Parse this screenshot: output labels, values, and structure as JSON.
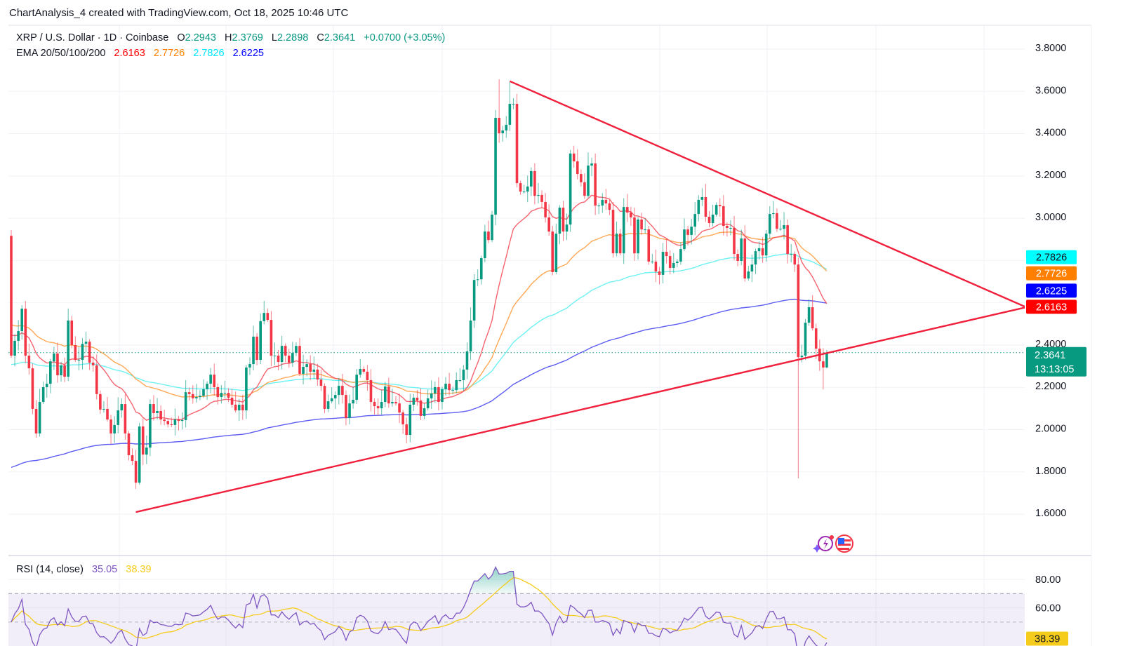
{
  "header": {
    "title": "ChartAnalysis_4 created with TradingView.com, Oct 18, 2025 10:46 UTC"
  },
  "legend": {
    "symbol": "XRP / U.S. Dollar · 1D · Coinbase",
    "o_label": "O",
    "o": "2.2943",
    "h_label": "H",
    "h": "2.3769",
    "l_label": "L",
    "l": "2.2898",
    "c_label": "C",
    "c": "2.3641",
    "change": "+0.0700 (+3.05%)",
    "ema_label": "EMA 20/50/100/200",
    "ema20": "2.6163",
    "ema50": "2.7726",
    "ema100": "2.7826",
    "ema200": "2.6225"
  },
  "price_axis": {
    "ticks": [
      "3.8000",
      "3.6000",
      "3.4000",
      "3.2000",
      "3.0000",
      "2.4000",
      "2.2000",
      "2.0000",
      "1.8000",
      "1.6000"
    ],
    "tick_values": [
      3.8,
      3.6,
      3.4,
      3.2,
      3.0,
      2.4,
      2.2,
      2.0,
      1.8,
      1.6
    ],
    "grid_values": [
      3.8,
      3.6,
      3.4,
      3.2,
      3.0,
      2.8,
      2.6,
      2.4,
      2.2,
      2.0,
      1.8,
      1.6
    ],
    "markers": [
      {
        "name": "ema100-price-label",
        "text": "2.7826",
        "value": 2.7826,
        "bg": "#00ffff",
        "fg": "#131722"
      },
      {
        "name": "ema50-price-label",
        "text": "2.7726",
        "value": 2.7726,
        "bg": "#ff7f00",
        "fg": "#ffffff"
      },
      {
        "name": "ema200-price-label",
        "text": "2.6225",
        "value": 2.6225,
        "bg": "#0000ff",
        "fg": "#ffffff"
      },
      {
        "name": "ema20-price-label",
        "text": "2.6163",
        "value": 2.6163,
        "bg": "#ff0000",
        "fg": "#ffffff"
      }
    ],
    "current_price": "2.3641",
    "countdown": "13:13:05"
  },
  "rsi": {
    "label": "RSI (14, close)",
    "value": "35.05",
    "ma_value": "38.39",
    "ticks": [
      "80.00",
      "60.00"
    ],
    "tick_values": [
      80,
      60
    ],
    "upper_band": 70,
    "middle_band": 50,
    "period": 14,
    "ma_period": 14
  },
  "colors": {
    "up": "#089981",
    "down": "#f23645",
    "ema20": "#f5525f",
    "ema50": "#ff9f43",
    "ema100": "#5ef0f2",
    "ema200": "#4a4af2",
    "trendline": "#f0203c",
    "rsi": "#7e57c2",
    "rsi_ma": "#f5cc1b"
  },
  "chart_data": {
    "type": "candlestick",
    "title": "XRP / U.S. Dollar · 1D · Coinbase",
    "ylim": [
      1.45,
      3.9
    ],
    "first_open": 2.917,
    "close": [
      2.35,
      2.42,
      2.466,
      2.572,
      2.35,
      2.29,
      2.098,
      1.982,
      2.131,
      2.201,
      2.217,
      2.323,
      2.36,
      2.257,
      2.304,
      2.25,
      2.516,
      2.4,
      2.33,
      2.33,
      2.406,
      2.416,
      2.317,
      2.304,
      2.168,
      2.095,
      2.098,
      2.048,
      1.982,
      2.022,
      2.091,
      2.121,
      1.982,
      1.879,
      1.852,
      1.749,
      2.015,
      1.882,
      1.915,
      2.121,
      2.078,
      2.088,
      2.048,
      2.041,
      2.025,
      2.022,
      2.048,
      2.041,
      2.045,
      2.177,
      2.168,
      2.148,
      2.154,
      2.16,
      2.191,
      2.217,
      2.26,
      2.201,
      2.154,
      2.174,
      2.174,
      2.151,
      2.118,
      2.091,
      2.118,
      2.091,
      2.294,
      2.31,
      2.44,
      2.33,
      2.513,
      2.552,
      2.519,
      2.35,
      2.35,
      2.32,
      2.396,
      2.35,
      2.317,
      2.363,
      2.396,
      2.264,
      2.297,
      2.31,
      2.274,
      2.284,
      2.237,
      2.207,
      2.098,
      2.134,
      2.148,
      2.164,
      2.207,
      2.164,
      2.055,
      2.124,
      2.141,
      2.26,
      2.287,
      2.274,
      2.234,
      2.131,
      2.111,
      2.101,
      2.131,
      2.204,
      2.124,
      2.131,
      2.124,
      2.081,
      2.025,
      1.975,
      2.118,
      2.151,
      2.138,
      2.065,
      2.101,
      2.148,
      2.171,
      2.201,
      2.131,
      2.191,
      2.217,
      2.187,
      2.187,
      2.234,
      2.234,
      2.284,
      2.37,
      2.516,
      2.708,
      2.711,
      2.811,
      2.937,
      2.897,
      3.017,
      3.475,
      3.402,
      3.415,
      3.442,
      3.541,
      3.541,
      3.166,
      3.126,
      3.126,
      3.15,
      3.223,
      3.106,
      3.11,
      3.077,
      3.004,
      2.937,
      2.745,
      2.927,
      3.05,
      2.937,
      2.97,
      3.306,
      3.269,
      3.209,
      3.17,
      3.106,
      3.249,
      3.259,
      3.06,
      3.06,
      3.087,
      3.07,
      3.04,
      2.834,
      2.927,
      2.834,
      3.053,
      3.027,
      3.004,
      2.834,
      2.994,
      2.947,
      2.947,
      2.795,
      2.795,
      2.748,
      2.732,
      2.841,
      2.821,
      2.765,
      2.788,
      2.795,
      2.854,
      2.947,
      2.921,
      2.96,
      3.02,
      3.087,
      3.1,
      3.007,
      2.977,
      3.017,
      3.063,
      3.057,
      2.964,
      2.954,
      2.954,
      2.831,
      2.798,
      2.904,
      2.715,
      2.748,
      2.781,
      2.844,
      2.858,
      2.824,
      2.927,
      3.02,
      3.024,
      2.95,
      2.95,
      2.967,
      2.831,
      2.831,
      2.781,
      2.343,
      2.35,
      2.506,
      2.579,
      2.479,
      2.383,
      2.323,
      2.294,
      2.3641
    ],
    "last_candle": {
      "open": 2.2943,
      "high": 2.3769,
      "low": 2.2898,
      "close": 2.3641
    },
    "wick_overrides": [
      {
        "i": 0,
        "high": 2.944
      },
      {
        "i": 35,
        "low": 1.72
      },
      {
        "i": 137,
        "high": 3.657
      },
      {
        "i": 140,
        "high": 3.645
      },
      {
        "i": 221,
        "low": 1.77
      },
      {
        "i": 228,
        "low": 2.19
      }
    ],
    "ema_start": {
      "ema20": 2.457,
      "ema50": 2.5,
      "ema100": 2.307,
      "ema200": 1.816
    },
    "ema_periods": {
      "ema20": 20,
      "ema50": 50,
      "ema100": 100,
      "ema200": 200
    },
    "trendlines": [
      {
        "name": "descending-resistance",
        "from": {
          "bar": 140,
          "price": 3.648
        },
        "to": {
          "bar": 285,
          "price": 2.579
        }
      },
      {
        "name": "ascending-support",
        "from": {
          "bar": 35,
          "price": 1.61
        },
        "to": {
          "bar": 285,
          "price": 2.579
        }
      }
    ]
  }
}
